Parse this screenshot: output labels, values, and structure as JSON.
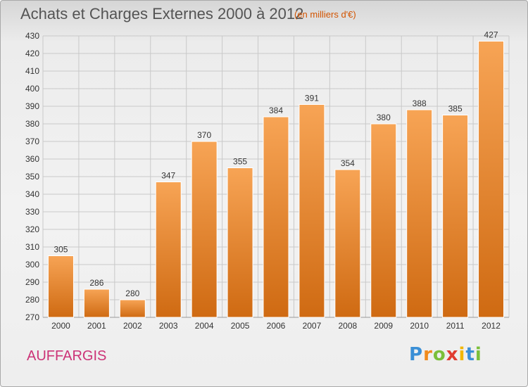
{
  "header": {
    "title": "Achats et Charges Externes 2000 à 2012",
    "unit": "(en milliers d'€)"
  },
  "footer": {
    "commune": "AUFFARGIS",
    "logo_letters": [
      "P",
      "r",
      "o",
      "x",
      "i",
      "t",
      "i"
    ],
    "logo_colors": [
      "#3a8fd6",
      "#f08a1c",
      "#7bbf3a",
      "#e03c31",
      "#f2b705",
      "#3a8fd6",
      "#7bbf3a"
    ]
  },
  "colors": {
    "bar_top": "#f7a455",
    "bar_bottom": "#cf6a12",
    "bar_border": "#ffffff",
    "grid": "#c9c9c9",
    "axis_text": "#333333"
  },
  "chart_data": {
    "type": "bar",
    "title": "Achats et Charges Externes 2000 à 2012",
    "categories": [
      "2000",
      "2001",
      "2002",
      "2003",
      "2004",
      "2005",
      "2006",
      "2007",
      "2008",
      "2009",
      "2010",
      "2011",
      "2012"
    ],
    "values": [
      305,
      286,
      280,
      347,
      370,
      355,
      384,
      391,
      354,
      380,
      388,
      385,
      427
    ],
    "ylim": [
      270,
      430
    ],
    "yticks": [
      270,
      280,
      290,
      300,
      310,
      320,
      330,
      340,
      350,
      360,
      370,
      380,
      390,
      400,
      410,
      420,
      430
    ],
    "grid": true,
    "xlabel": "",
    "ylabel": ""
  }
}
